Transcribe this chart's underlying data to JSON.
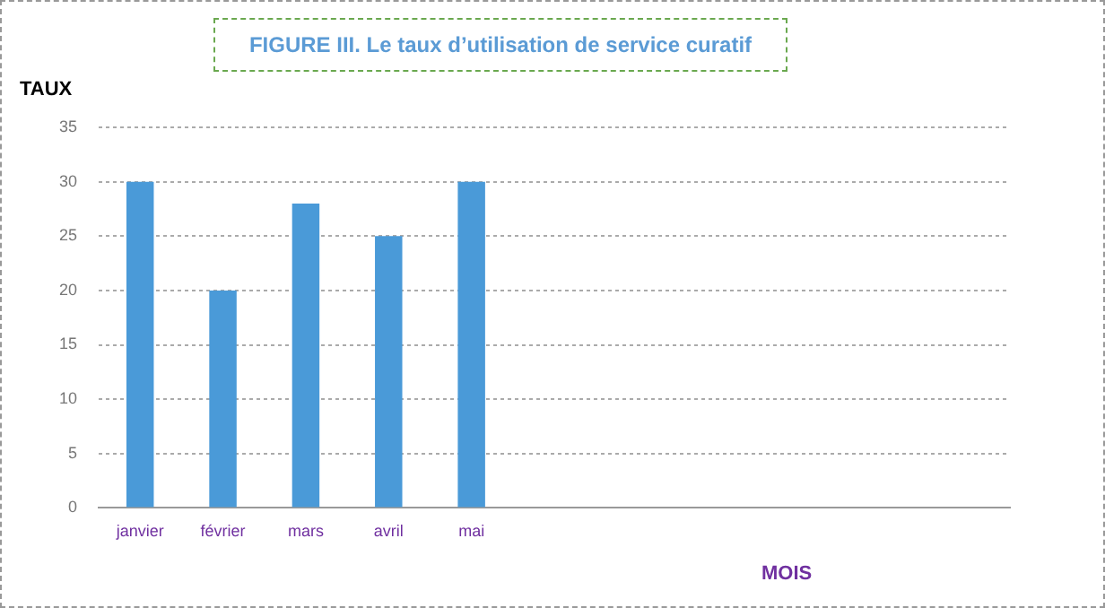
{
  "chart_data": {
    "type": "bar",
    "title": "FIGURE III. Le taux d’utilisation de service curatif",
    "ylabel": "TAUX",
    "xlabel": "MOIS",
    "categories": [
      "janvier",
      "février",
      "mars",
      "avril",
      "mai",
      null,
      null,
      null,
      null,
      null,
      null
    ],
    "values": [
      30,
      20,
      28,
      25,
      30,
      null,
      null,
      null,
      null,
      null,
      null
    ],
    "color": "#4a9ad8",
    "ylim": [
      0,
      35
    ],
    "yticks": [
      0,
      5,
      10,
      15,
      20,
      25,
      30,
      35
    ],
    "grid": "y",
    "legend": false
  }
}
